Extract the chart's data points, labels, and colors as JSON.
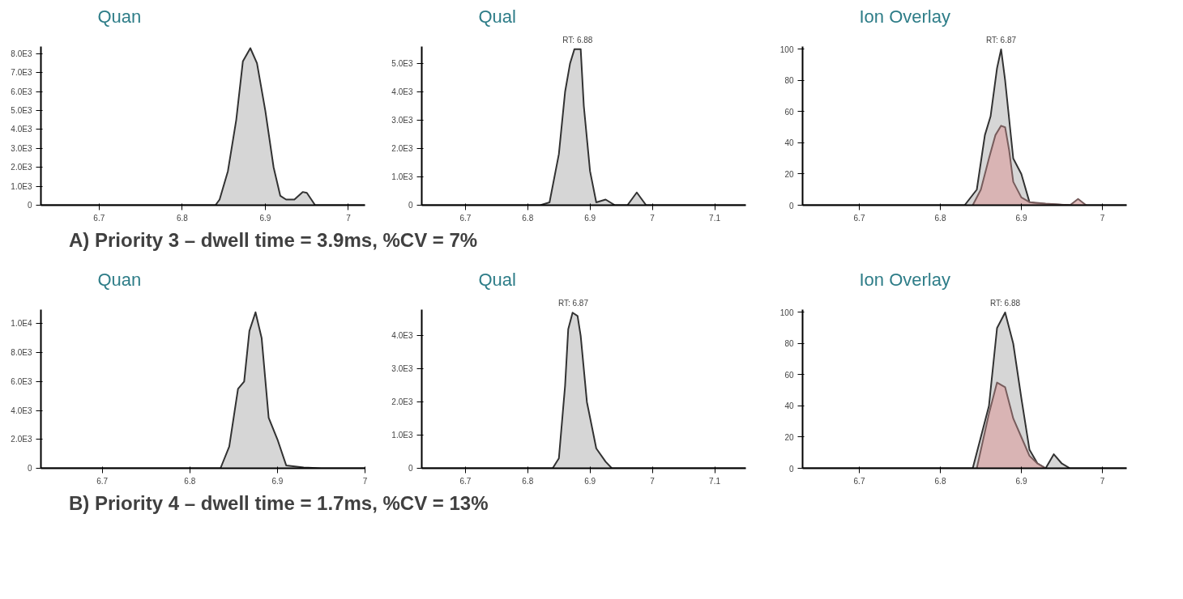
{
  "chart_data": [
    {
      "type": "area",
      "title": "Quan",
      "grid": false,
      "xlim": [
        6.63,
        7.02
      ],
      "xticks": [
        6.7,
        6.8,
        6.9,
        7.0
      ],
      "ylim": [
        0,
        8400
      ],
      "yticks": [
        0,
        {
          "value": 1000,
          "label": "1.0E3"
        },
        {
          "value": 2000,
          "label": "2.0E3"
        },
        {
          "value": 3000,
          "label": "3.0E3"
        },
        {
          "value": 4000,
          "label": "4.0E3"
        },
        {
          "value": 5000,
          "label": "5.0E3"
        },
        {
          "value": 6000,
          "label": "6.0E3"
        },
        {
          "value": 7000,
          "label": "7.0E3"
        },
        {
          "value": 8000,
          "label": "8.0E3"
        }
      ],
      "series": [
        {
          "color": "#c8c8c8",
          "x": [
            6.63,
            6.84,
            6.845,
            6.855,
            6.865,
            6.873,
            6.882,
            6.89,
            6.9,
            6.91,
            6.918,
            6.925,
            6.935,
            6.945,
            6.95,
            6.96,
            7.02
          ],
          "values": [
            0,
            0,
            300,
            1800,
            4500,
            7600,
            8300,
            7500,
            5000,
            2000,
            500,
            300,
            300,
            700,
            650,
            0,
            0
          ]
        }
      ],
      "annotations": [
        "A) Priority 3 – dwell time = 3.9ms, %CV = 7%"
      ]
    },
    {
      "type": "area",
      "title": "Qual",
      "grid": false,
      "xlim": [
        6.63,
        7.15
      ],
      "xticks": [
        6.7,
        6.8,
        6.9,
        7.0,
        7.1
      ],
      "ylim": [
        0,
        5600
      ],
      "yticks": [
        0,
        {
          "value": 1000,
          "label": "1.0E3"
        },
        {
          "value": 2000,
          "label": "2.0E3"
        },
        {
          "value": 3000,
          "label": "3.0E3"
        },
        {
          "value": 4000,
          "label": "4.0E3"
        },
        {
          "value": 5000,
          "label": "5.0E3"
        }
      ],
      "series": [
        {
          "color": "#c8c8c8",
          "x": [
            6.63,
            6.82,
            6.835,
            6.85,
            6.86,
            6.868,
            6.875,
            6.885,
            6.89,
            6.9,
            6.91,
            6.925,
            6.94,
            6.96,
            6.975,
            6.99,
            7.15
          ],
          "values": [
            0,
            0,
            100,
            1800,
            4000,
            5000,
            5500,
            5500,
            3500,
            1200,
            100,
            200,
            0,
            0,
            450,
            0,
            0
          ]
        }
      ],
      "annotations": [
        {
          "text": "RT: 6.88",
          "x": 6.88,
          "y": 5500
        }
      ]
    },
    {
      "type": "area",
      "title": "Ion Overlay",
      "grid": false,
      "xlim": [
        6.63,
        7.03
      ],
      "xticks": [
        6.7,
        6.8,
        6.9,
        7.0
      ],
      "ylim": [
        0,
        102
      ],
      "yticks": [
        0,
        20,
        40,
        60,
        80,
        100
      ],
      "series": [
        {
          "color": "#c8c8c8",
          "x": [
            6.63,
            6.83,
            6.845,
            6.855,
            6.862,
            6.87,
            6.875,
            6.88,
            6.89,
            6.9,
            6.91,
            6.92,
            6.96,
            7.03
          ],
          "values": [
            0,
            0,
            10,
            45,
            57,
            88,
            100,
            80,
            30,
            20,
            2,
            1,
            0,
            0
          ]
        },
        {
          "color": "#d9a8a8",
          "x": [
            6.84,
            6.85,
            6.86,
            6.868,
            6.875,
            6.88,
            6.885,
            6.89,
            6.9,
            6.91,
            6.93,
            6.96,
            6.97,
            6.98
          ],
          "values": [
            0,
            10,
            30,
            45,
            51,
            50,
            35,
            15,
            5,
            2,
            1,
            0,
            4,
            0
          ]
        }
      ],
      "annotations": [
        {
          "text": "RT: 6.87",
          "x": 6.875,
          "y": 100
        }
      ]
    },
    {
      "type": "area",
      "title": "Quan",
      "grid": false,
      "xlim": [
        6.63,
        7.0
      ],
      "xticks": [
        6.7,
        6.8,
        6.9,
        7.0
      ],
      "ylim": [
        0,
        11000
      ],
      "yticks": [
        0,
        {
          "value": 2000,
          "label": "2.0E3"
        },
        {
          "value": 4000,
          "label": "4.0E3"
        },
        {
          "value": 6000,
          "label": "6.0E3"
        },
        {
          "value": 8000,
          "label": "8.0E3"
        },
        {
          "value": 10000,
          "label": "1.0E4"
        }
      ],
      "series": [
        {
          "color": "#c8c8c8",
          "x": [
            6.63,
            6.835,
            6.845,
            6.855,
            6.862,
            6.868,
            6.875,
            6.882,
            6.89,
            6.9,
            6.91,
            6.93,
            6.95,
            7.0
          ],
          "values": [
            0,
            0,
            1500,
            5500,
            6000,
            9500,
            10800,
            9000,
            3500,
            2000,
            200,
            50,
            0,
            0
          ]
        }
      ],
      "annotations": [
        "B) Priority 4 – dwell time = 1.7ms, %CV = 13%"
      ]
    },
    {
      "type": "area",
      "title": "Qual",
      "grid": false,
      "xlim": [
        6.63,
        7.15
      ],
      "xticks": [
        6.7,
        6.8,
        6.9,
        7.0,
        7.1
      ],
      "ylim": [
        0,
        4800
      ],
      "yticks": [
        0,
        {
          "value": 1000,
          "label": "1.0E3"
        },
        {
          "value": 2000,
          "label": "2.0E3"
        },
        {
          "value": 3000,
          "label": "3.0E3"
        },
        {
          "value": 4000,
          "label": "4.0E3"
        }
      ],
      "series": [
        {
          "color": "#c8c8c8",
          "x": [
            6.63,
            6.84,
            6.85,
            6.86,
            6.865,
            6.872,
            6.88,
            6.885,
            6.895,
            6.91,
            6.925,
            6.935,
            7.15
          ],
          "values": [
            0,
            0,
            300,
            2500,
            4200,
            4700,
            4600,
            4000,
            2000,
            600,
            200,
            0,
            0
          ]
        }
      ],
      "annotations": [
        {
          "text": "RT: 6.87",
          "x": 6.873,
          "y": 4700
        }
      ]
    },
    {
      "type": "area",
      "title": "Ion Overlay",
      "grid": false,
      "xlim": [
        6.63,
        7.03
      ],
      "xticks": [
        6.7,
        6.8,
        6.9,
        7.0
      ],
      "ylim": [
        0,
        102
      ],
      "yticks": [
        0,
        20,
        40,
        60,
        80,
        100
      ],
      "series": [
        {
          "color": "#c8c8c8",
          "x": [
            6.63,
            6.84,
            6.86,
            6.87,
            6.88,
            6.89,
            6.9,
            6.91,
            6.92,
            6.93,
            6.94,
            6.95,
            6.96,
            7.03
          ],
          "values": [
            0,
            0,
            40,
            90,
            100,
            80,
            45,
            12,
            3,
            0,
            9,
            3,
            0,
            0
          ]
        },
        {
          "color": "#d9a8a8",
          "x": [
            6.845,
            6.86,
            6.87,
            6.88,
            6.89,
            6.9,
            6.91,
            6.92,
            6.93
          ],
          "values": [
            0,
            35,
            55,
            52,
            32,
            20,
            8,
            3,
            0
          ]
        }
      ],
      "annotations": [
        {
          "text": "RT: 6.88",
          "x": 6.88,
          "y": 100
        }
      ]
    }
  ]
}
